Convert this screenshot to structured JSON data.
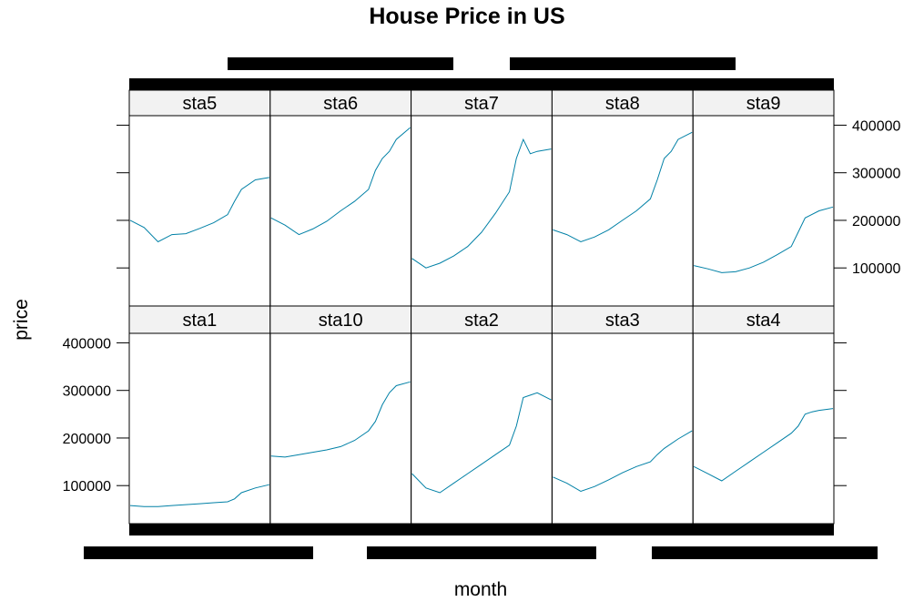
{
  "chart_data": {
    "type": "line",
    "title": "House Price in US",
    "xlabel": "month",
    "ylabel": "price",
    "ylim": [
      20000,
      420000
    ],
    "yticks": [
      100000,
      200000,
      300000,
      400000
    ],
    "ytick_labels": [
      "100000",
      "200000",
      "300000",
      "400000"
    ],
    "layout": {
      "columns": 5,
      "rows": 2
    },
    "line_color": "#0080a6",
    "strip_color": "#f2f2f2",
    "x_note": "month index 0-1 across each panel; x tick labels are illegible overplotted black text",
    "panels": [
      {
        "name": "sta5",
        "row": "top",
        "x": [
          0,
          0.1,
          0.2,
          0.3,
          0.4,
          0.5,
          0.6,
          0.7,
          0.75,
          0.8,
          0.9,
          1.0
        ],
        "values": [
          200000,
          185000,
          155000,
          170000,
          172000,
          183000,
          195000,
          212000,
          240000,
          265000,
          285000,
          290000
        ]
      },
      {
        "name": "sta6",
        "row": "top",
        "x": [
          0,
          0.1,
          0.2,
          0.3,
          0.4,
          0.5,
          0.6,
          0.7,
          0.75,
          0.8,
          0.85,
          0.9,
          1.0
        ],
        "values": [
          205000,
          190000,
          170000,
          182000,
          198000,
          220000,
          240000,
          265000,
          305000,
          330000,
          345000,
          370000,
          395000
        ]
      },
      {
        "name": "sta7",
        "row": "top",
        "x": [
          0,
          0.1,
          0.2,
          0.3,
          0.4,
          0.5,
          0.6,
          0.7,
          0.75,
          0.8,
          0.85,
          0.9,
          1.0
        ],
        "values": [
          120000,
          100000,
          110000,
          125000,
          145000,
          175000,
          215000,
          260000,
          330000,
          370000,
          340000,
          345000,
          350000
        ]
      },
      {
        "name": "sta8",
        "row": "top",
        "x": [
          0,
          0.1,
          0.2,
          0.3,
          0.4,
          0.5,
          0.6,
          0.7,
          0.75,
          0.8,
          0.85,
          0.9,
          1.0
        ],
        "values": [
          180000,
          170000,
          155000,
          165000,
          180000,
          200000,
          220000,
          245000,
          285000,
          330000,
          345000,
          370000,
          385000
        ]
      },
      {
        "name": "sta9",
        "row": "top",
        "x": [
          0,
          0.1,
          0.2,
          0.3,
          0.4,
          0.5,
          0.6,
          0.7,
          0.75,
          0.8,
          0.9,
          1.0
        ],
        "values": [
          105000,
          98000,
          90000,
          92000,
          100000,
          112000,
          128000,
          145000,
          175000,
          205000,
          220000,
          228000
        ]
      },
      {
        "name": "sta1",
        "row": "bottom",
        "x": [
          0,
          0.1,
          0.2,
          0.3,
          0.4,
          0.5,
          0.6,
          0.7,
          0.75,
          0.8,
          0.9,
          1.0
        ],
        "values": [
          58000,
          56000,
          56000,
          58000,
          60000,
          62000,
          64000,
          66000,
          72000,
          85000,
          95000,
          102000
        ]
      },
      {
        "name": "sta10",
        "row": "bottom",
        "x": [
          0,
          0.1,
          0.2,
          0.3,
          0.4,
          0.5,
          0.6,
          0.7,
          0.75,
          0.8,
          0.85,
          0.9,
          1.0
        ],
        "values": [
          162000,
          160000,
          165000,
          170000,
          175000,
          182000,
          195000,
          215000,
          235000,
          270000,
          295000,
          310000,
          318000
        ]
      },
      {
        "name": "sta2",
        "row": "bottom",
        "x": [
          0,
          0.1,
          0.2,
          0.3,
          0.4,
          0.5,
          0.6,
          0.7,
          0.75,
          0.8,
          0.85,
          0.9,
          1.0
        ],
        "values": [
          125000,
          95000,
          85000,
          105000,
          125000,
          145000,
          165000,
          185000,
          225000,
          285000,
          290000,
          295000,
          280000
        ]
      },
      {
        "name": "sta3",
        "row": "bottom",
        "x": [
          0,
          0.1,
          0.2,
          0.3,
          0.4,
          0.5,
          0.6,
          0.7,
          0.75,
          0.8,
          0.9,
          1.0
        ],
        "values": [
          118000,
          105000,
          88000,
          98000,
          112000,
          127000,
          140000,
          150000,
          165000,
          178000,
          198000,
          215000
        ]
      },
      {
        "name": "sta4",
        "row": "bottom",
        "x": [
          0,
          0.1,
          0.2,
          0.3,
          0.4,
          0.5,
          0.6,
          0.7,
          0.75,
          0.8,
          0.85,
          0.9,
          1.0
        ],
        "values": [
          140000,
          125000,
          110000,
          130000,
          150000,
          170000,
          190000,
          210000,
          225000,
          250000,
          255000,
          258000,
          262000
        ]
      }
    ]
  }
}
